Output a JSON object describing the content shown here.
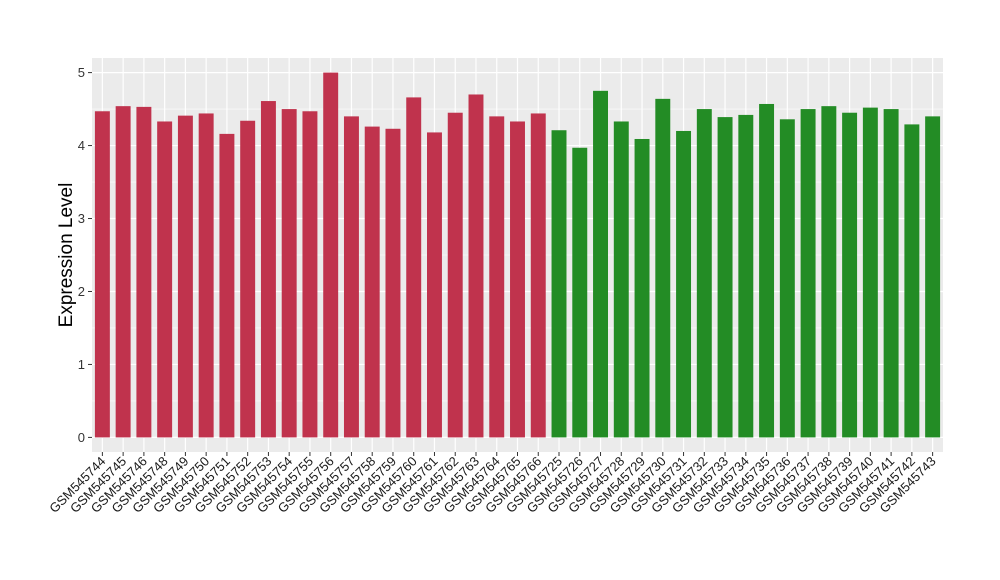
{
  "chart_data": {
    "type": "bar",
    "xlabel": "",
    "ylabel": "Expression Level",
    "ylim": [
      -0.2,
      5.2
    ],
    "yticks": [
      0,
      1,
      2,
      3,
      4,
      5
    ],
    "grid": true,
    "colors": {
      "group_a": "#c0334d",
      "group_b": "#238c25",
      "panel": "#ebebeb",
      "gridline": "#ffffff"
    },
    "categories": [
      "GSM545744",
      "GSM545745",
      "GSM545746",
      "GSM545748",
      "GSM545749",
      "GSM545750",
      "GSM545751",
      "GSM545752",
      "GSM545753",
      "GSM545754",
      "GSM545755",
      "GSM545756",
      "GSM545757",
      "GSM545758",
      "GSM545759",
      "GSM545760",
      "GSM545761",
      "GSM545762",
      "GSM545763",
      "GSM545764",
      "GSM545765",
      "GSM545766",
      "GSM545725",
      "GSM545726",
      "GSM545727",
      "GSM545728",
      "GSM545729",
      "GSM545730",
      "GSM545731",
      "GSM545732",
      "GSM545733",
      "GSM545734",
      "GSM545735",
      "GSM545736",
      "GSM545737",
      "GSM545738",
      "GSM545739",
      "GSM545740",
      "GSM545741",
      "GSM545742",
      "GSM545743"
    ],
    "values": [
      4.47,
      4.54,
      4.53,
      4.33,
      4.41,
      4.44,
      4.16,
      4.34,
      4.61,
      4.5,
      4.47,
      5.0,
      4.4,
      4.26,
      4.23,
      4.66,
      4.18,
      4.45,
      4.7,
      4.4,
      4.33,
      4.44,
      4.21,
      3.97,
      4.75,
      4.33,
      4.09,
      4.64,
      4.2,
      4.5,
      4.39,
      4.42,
      4.57,
      4.36,
      4.5,
      4.54,
      4.45,
      4.52,
      4.5,
      4.29,
      4.4
    ],
    "groups": [
      "a",
      "a",
      "a",
      "a",
      "a",
      "a",
      "a",
      "a",
      "a",
      "a",
      "a",
      "a",
      "a",
      "a",
      "a",
      "a",
      "a",
      "a",
      "a",
      "a",
      "a",
      "a",
      "b",
      "b",
      "b",
      "b",
      "b",
      "b",
      "b",
      "b",
      "b",
      "b",
      "b",
      "b",
      "b",
      "b",
      "b",
      "b",
      "b",
      "b",
      "b"
    ]
  }
}
